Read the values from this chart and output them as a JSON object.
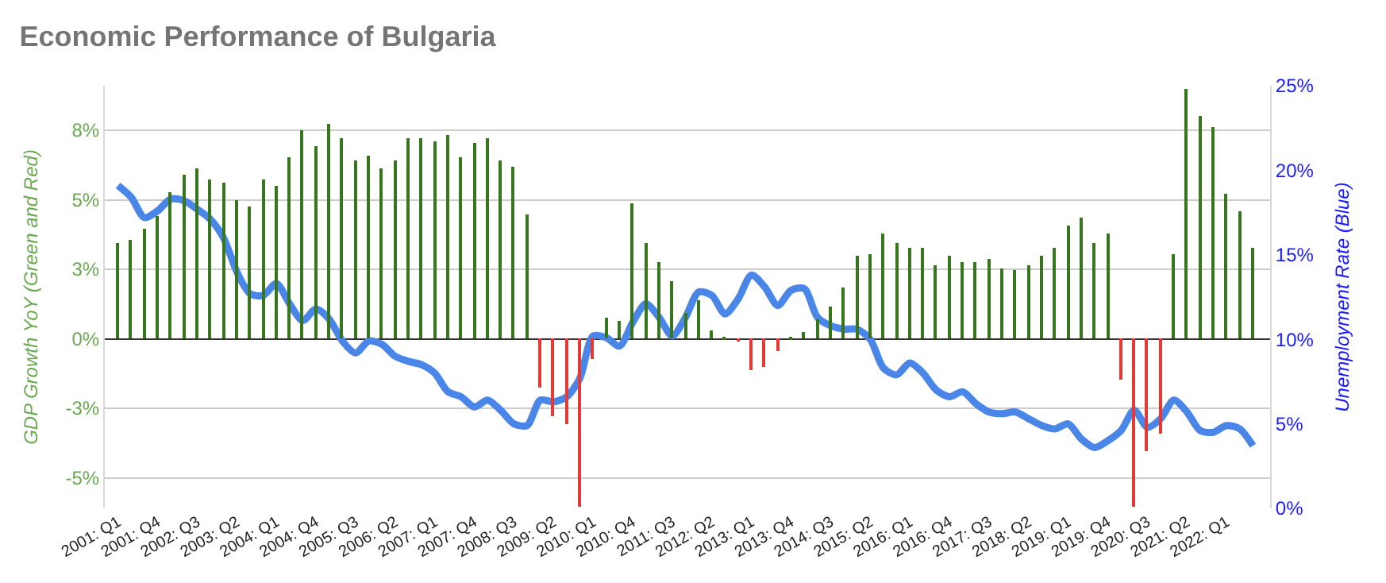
{
  "chart_data": {
    "type": "bar",
    "title": "Economic Performance of Bulgaria",
    "ylabel": "GDP Growth YoY (Green and Red)",
    "y2label": "Unemployment Rate (Blue)",
    "categories": [
      "2001: Q1",
      null,
      null,
      "2001: Q4",
      null,
      null,
      "2002: Q3",
      null,
      null,
      "2003: Q2",
      null,
      null,
      "2004: Q1",
      null,
      null,
      "2004: Q4",
      null,
      null,
      "2005: Q3",
      null,
      null,
      "2006: Q2",
      null,
      null,
      "2007: Q1",
      null,
      null,
      "2007: Q4",
      null,
      null,
      "2008: Q3",
      null,
      null,
      "2009: Q2",
      null,
      null,
      "2010: Q1",
      null,
      null,
      "2010: Q4",
      null,
      null,
      "2011: Q3",
      null,
      null,
      "2012: Q2",
      null,
      null,
      "2013: Q1",
      null,
      null,
      "2013: Q4",
      null,
      null,
      "2014: Q3",
      null,
      null,
      "2015: Q2",
      null,
      null,
      "2016: Q1",
      null,
      null,
      "2016: Q4",
      null,
      null,
      "2017: Q3",
      null,
      null,
      "2018: Q2",
      null,
      null,
      "2019: Q1",
      null,
      null,
      "2019: Q4",
      null,
      null,
      "2020: Q3",
      null,
      null,
      "2021: Q2",
      null,
      null,
      "2022: Q1",
      null,
      null
    ],
    "series": [
      {
        "type": "bar",
        "values": [
          3.45,
          3.58,
          3.98,
          4.39,
          5.28,
          5.91,
          6.12,
          5.74,
          5.63,
          5.0,
          4.73,
          5.74,
          5.49,
          6.53,
          7.5,
          6.93,
          7.71,
          7.22,
          6.42,
          6.59,
          6.14,
          6.42,
          7.22,
          7.22,
          7.08,
          7.33,
          6.53,
          7.05,
          7.2,
          6.42,
          6.17,
          4.47,
          -1.74,
          -2.76,
          -3.05,
          -6.05,
          -0.72,
          0.78,
          0.66,
          4.86,
          3.44,
          2.76,
          2.08,
          0.95,
          1.4,
          0.32,
          0.06,
          -0.08,
          -1.12,
          -1.0,
          -0.45,
          0.06,
          0.27,
          0.7,
          1.17,
          1.86,
          2.99,
          3.05,
          3.79,
          3.44,
          3.27,
          3.27,
          2.65,
          2.97,
          2.76,
          2.74,
          2.88,
          2.54,
          2.48,
          2.65,
          2.97,
          3.27,
          4.07,
          4.35,
          3.44,
          3.79,
          -1.46,
          -6.05,
          -4.05,
          -3.43,
          3.05,
          9.0,
          7.99,
          7.6,
          5.21,
          4.58,
          3.27
        ],
        "colors": [
          "#38761d",
          "#38761d",
          "#38761d",
          "#38761d",
          "#38761d",
          "#38761d",
          "#38761d",
          "#38761d",
          "#38761d",
          "#38761d",
          "#38761d",
          "#38761d",
          "#38761d",
          "#38761d",
          "#38761d",
          "#38761d",
          "#38761d",
          "#38761d",
          "#38761d",
          "#38761d",
          "#38761d",
          "#38761d",
          "#38761d",
          "#38761d",
          "#38761d",
          "#38761d",
          "#38761d",
          "#38761d",
          "#38761d",
          "#38761d",
          "#38761d",
          "#38761d",
          "#e53935",
          "#e53935",
          "#e53935",
          "#e53935",
          "#e53935",
          "#38761d",
          "#38761d",
          "#38761d",
          "#38761d",
          "#38761d",
          "#38761d",
          "#38761d",
          "#38761d",
          "#38761d",
          "#38761d",
          "#e53935",
          "#e53935",
          "#e53935",
          "#e53935",
          "#38761d",
          "#38761d",
          "#38761d",
          "#38761d",
          "#38761d",
          "#38761d",
          "#38761d",
          "#38761d",
          "#38761d",
          "#38761d",
          "#38761d",
          "#38761d",
          "#38761d",
          "#38761d",
          "#38761d",
          "#38761d",
          "#38761d",
          "#38761d",
          "#38761d",
          "#38761d",
          "#38761d",
          "#38761d",
          "#38761d",
          "#38761d",
          "#38761d",
          "#e53935",
          "#e53935",
          "#e53935",
          "#e53935",
          "#38761d",
          "#38761d",
          "#38761d",
          "#38761d",
          "#38761d",
          "#38761d",
          "#38761d"
        ]
      },
      {
        "type": "line",
        "axis": "y2",
        "color": "#4a86e8",
        "values": [
          19.1,
          18.4,
          17.2,
          17.6,
          18.3,
          18.2,
          17.7,
          17.1,
          16.0,
          14.0,
          12.7,
          12.6,
          13.3,
          12.1,
          11.1,
          11.8,
          11.2,
          9.9,
          9.2,
          9.9,
          9.7,
          9.0,
          8.7,
          8.5,
          8.0,
          6.9,
          6.6,
          6.0,
          6.4,
          5.8,
          5.0,
          4.9,
          6.4,
          6.3,
          6.6,
          7.7,
          10.2,
          10.1,
          9.6,
          11.0,
          12.1,
          11.3,
          10.2,
          11.3,
          12.8,
          12.6,
          11.5,
          12.4,
          13.8,
          13.1,
          12.0,
          12.9,
          13.0,
          11.3,
          10.8,
          10.6,
          10.6,
          10.0,
          8.3,
          7.9,
          8.6,
          8.0,
          7.0,
          6.6,
          6.9,
          6.2,
          5.7,
          5.6,
          5.7,
          5.3,
          4.9,
          4.7,
          5.0,
          4.1,
          3.6,
          4.0,
          4.6,
          5.8,
          4.8,
          5.3,
          6.4,
          5.7,
          4.6,
          4.5,
          4.9,
          4.7,
          3.7
        ]
      }
    ],
    "ylim": [
      -6.1,
      9.1
    ],
    "yticks": [
      {
        "value": -5,
        "label": "-5%"
      },
      {
        "value": -2.5,
        "label": "-3%"
      },
      {
        "value": 0,
        "label": "0%"
      },
      {
        "value": 2.5,
        "label": "3%"
      },
      {
        "value": 5,
        "label": "5%"
      },
      {
        "value": 7.5,
        "label": "8%"
      }
    ],
    "y2lim": [
      0,
      25
    ],
    "y2ticks": [
      {
        "value": 0,
        "label": "0%"
      },
      {
        "value": 5,
        "label": "5%"
      },
      {
        "value": 10,
        "label": "10%"
      },
      {
        "value": 15,
        "label": "15%"
      },
      {
        "value": 20,
        "label": "20%"
      },
      {
        "value": 25,
        "label": "25%"
      }
    ],
    "grid": "y"
  }
}
